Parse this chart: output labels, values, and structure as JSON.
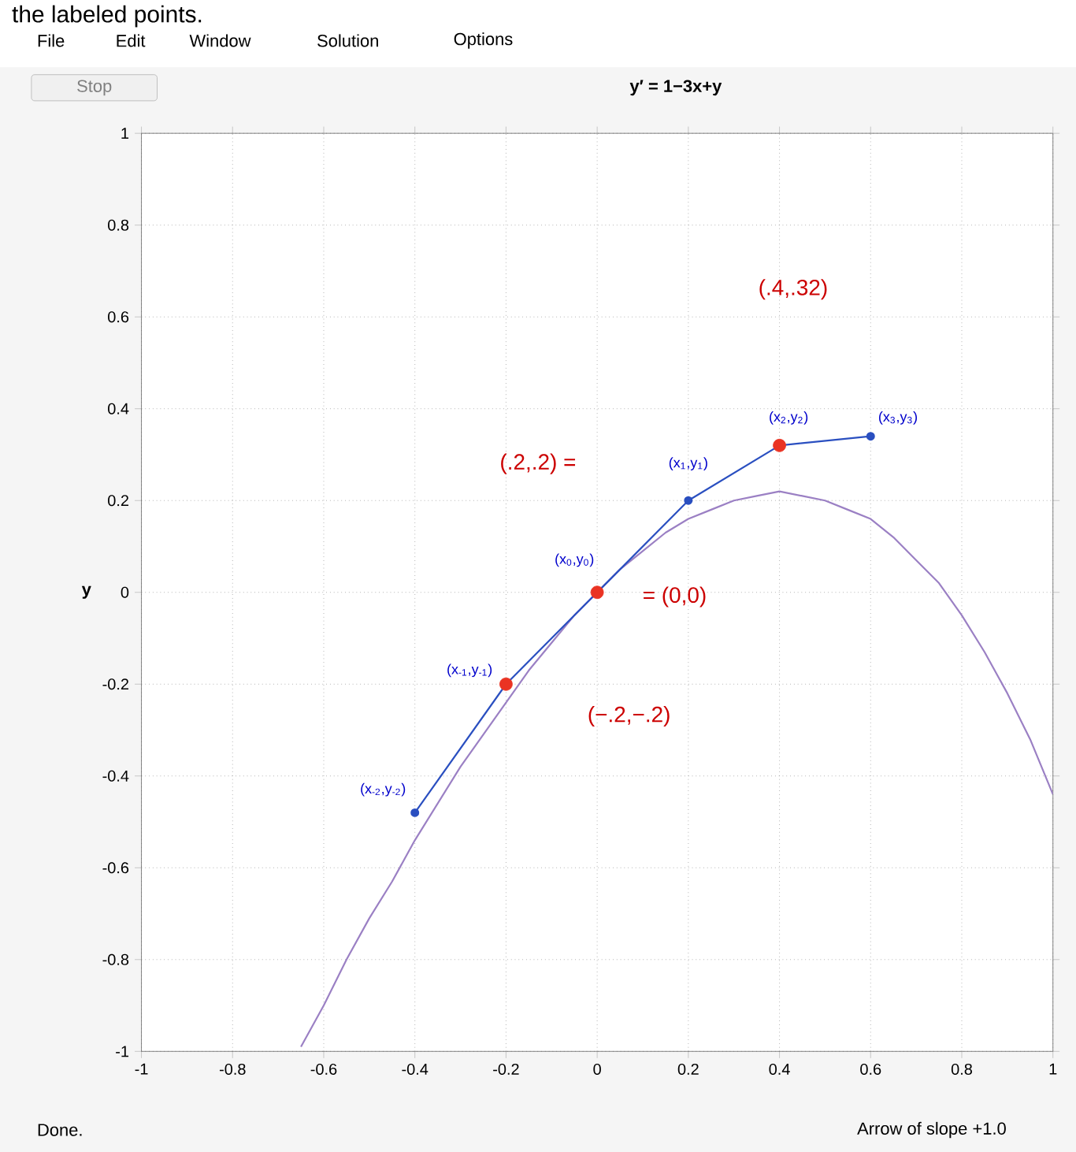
{
  "chart_data": {
    "type": "line",
    "title": "y′ = 1−3x+y",
    "ylabel": "y",
    "xlim": [
      -1,
      1
    ],
    "ylim": [
      -1,
      1
    ],
    "xticks": [
      -1,
      -0.8,
      -0.6,
      -0.4,
      -0.2,
      0,
      0.2,
      0.4,
      0.6,
      0.8,
      1
    ],
    "yticks": [
      -1,
      -0.8,
      -0.6,
      -0.4,
      -0.2,
      0,
      0.2,
      0.4,
      0.6,
      0.8,
      1
    ],
    "grid": true,
    "series": [
      {
        "color": "#9b80c4",
        "marker": "none",
        "x": [
          -0.65,
          -0.6,
          -0.55,
          -0.5,
          -0.45,
          -0.4,
          -0.35,
          -0.3,
          -0.25,
          -0.2,
          -0.15,
          -0.1,
          -0.05,
          0,
          0.05,
          0.1,
          0.15,
          0.2,
          0.25,
          0.3,
          0.35,
          0.4,
          0.45,
          0.5,
          0.55,
          0.6,
          0.65,
          0.7,
          0.75,
          0.8,
          0.85,
          0.9,
          0.95,
          1
        ],
        "values": [
          -0.99,
          -0.9,
          -0.8,
          -0.71,
          -0.63,
          -0.54,
          -0.46,
          -0.38,
          -0.31,
          -0.24,
          -0.17,
          -0.11,
          -0.05,
          0,
          0.05,
          0.09,
          0.13,
          0.16,
          0.18,
          0.2,
          0.21,
          0.22,
          0.21,
          0.2,
          0.18,
          0.16,
          0.12,
          0.07,
          0.02,
          -0.05,
          -0.13,
          -0.22,
          -0.32,
          -0.44
        ]
      },
      {
        "color": "#2a4fc0",
        "marker": "circle",
        "x": [
          -0.4,
          -0.2,
          0,
          0.2,
          0.4,
          0.6
        ],
        "values": [
          -0.48,
          -0.2,
          0,
          0.2,
          0.32,
          0.34
        ]
      },
      {
        "type": "scatter",
        "color": "#ea3323",
        "marker": "circle",
        "x": [
          -0.2,
          0,
          0.4
        ],
        "values": [
          -0.2,
          0,
          0.32
        ]
      }
    ],
    "annotations": [
      "(.4,.32)",
      "(.2,.2) =",
      "(x$_{1}$,y$_{1}$)",
      "(x$_{0}$,y$_{0}$)",
      "= (0,0)",
      "(x$_{2}$,y$_{2}$)",
      "(x$_{3}$,y$_{3}$)",
      "(x$_{-1}$,y$_{-1}$)",
      "(−.2,−.2)",
      "(x$_{-2}$,y$_{-2}$)",
      "the labeled points.",
      "File",
      "Edit",
      "Window",
      "Solution",
      "Options",
      "Stop",
      "Done.",
      "Arrow of slope +1.0"
    ]
  }
}
